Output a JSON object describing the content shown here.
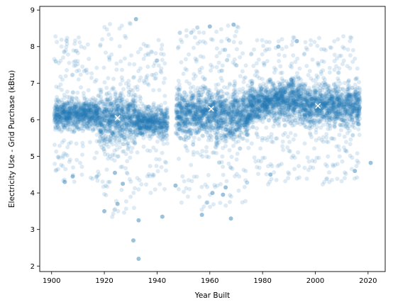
{
  "chart_data": {
    "type": "scatter",
    "title": "",
    "xlabel": "Year Built",
    "ylabel": "Electricity Use - Grid Purchase (kBtu)",
    "xlim": [
      1895.5,
      2026.5
    ],
    "ylim": [
      1.85,
      9.1
    ],
    "x_ticks": [
      1900,
      1920,
      1940,
      1960,
      1980,
      2000,
      2020
    ],
    "y_ticks": [
      2,
      3,
      4,
      5,
      6,
      7,
      8,
      9
    ],
    "grid": false,
    "legend": "none",
    "point_color": "#1f77b4",
    "point_alpha": 0.15,
    "marker_color": "#ffffff",
    "clusters": [
      {
        "x_range": [
          1901,
          1918
        ],
        "center": 6.15,
        "core_low": 5.6,
        "core_high": 6.9,
        "spread_low": 4.3,
        "spread_high": 8.3
      },
      {
        "x_range": [
          1918,
          1932
        ],
        "center": 6.05,
        "core_low": 5.0,
        "core_high": 7.4,
        "spread_low": 3.3,
        "spread_high": 8.7
      },
      {
        "x_range": [
          1932,
          1944
        ],
        "center": 5.95,
        "core_low": 5.3,
        "core_high": 6.6,
        "spread_low": 3.9,
        "spread_high": 8.2
      },
      {
        "x_range": [
          1947,
          1975
        ],
        "center": 6.2,
        "core_low": 5.3,
        "core_high": 7.4,
        "spread_low": 3.5,
        "spread_high": 8.6
      },
      {
        "x_range": [
          1975,
          1995
        ],
        "center": 6.5,
        "core_low": 5.7,
        "core_high": 7.4,
        "spread_low": 4.2,
        "spread_high": 8.3
      },
      {
        "x_range": [
          1995,
          2017
        ],
        "center": 6.4,
        "core_low": 5.5,
        "core_high": 7.3,
        "spread_low": 4.2,
        "spread_high": 8.3
      }
    ],
    "outliers": [
      {
        "x": 1933,
        "y": 2.2
      },
      {
        "x": 1931,
        "y": 2.7
      },
      {
        "x": 1942,
        "y": 3.35
      },
      {
        "x": 1933,
        "y": 3.25
      },
      {
        "x": 1920,
        "y": 3.5
      },
      {
        "x": 1925,
        "y": 3.7
      },
      {
        "x": 1905,
        "y": 4.3
      },
      {
        "x": 1908,
        "y": 4.45
      },
      {
        "x": 1965,
        "y": 3.95
      },
      {
        "x": 1966,
        "y": 4.15
      },
      {
        "x": 1961,
        "y": 4.0
      },
      {
        "x": 1924,
        "y": 4.55
      },
      {
        "x": 1927,
        "y": 4.25
      },
      {
        "x": 1947,
        "y": 4.2
      },
      {
        "x": 1983,
        "y": 4.5
      },
      {
        "x": 1957,
        "y": 3.4
      },
      {
        "x": 1968,
        "y": 3.3
      },
      {
        "x": 2021,
        "y": 4.82
      },
      {
        "x": 2015,
        "y": 4.6
      },
      {
        "x": 1986,
        "y": 8.0
      },
      {
        "x": 1932,
        "y": 8.75
      },
      {
        "x": 1960,
        "y": 8.55
      },
      {
        "x": 1969,
        "y": 8.6
      },
      {
        "x": 1993,
        "y": 8.15
      }
    ],
    "means": [
      {
        "x": 1925,
        "y": 6.05
      },
      {
        "x": 1960.5,
        "y": 6.3
      },
      {
        "x": 2001,
        "y": 6.38
      }
    ]
  }
}
